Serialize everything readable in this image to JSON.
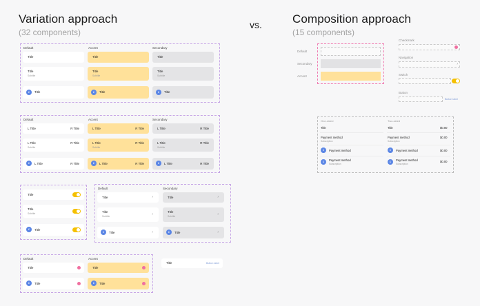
{
  "left": {
    "title": "Variation approach",
    "subtitle": "(32 components)"
  },
  "vs": "vs.",
  "right": {
    "title": "Composition approach",
    "subtitle": "(15 components)"
  },
  "col": {
    "default": "Default",
    "accent": "Accent",
    "secondary": "Secondary"
  },
  "item": {
    "title": "Title",
    "subtitle": "Subtitle",
    "ltitle": "L Title",
    "rtitle": "R Title",
    "avatar": "£",
    "button_label": "Button label"
  },
  "comp": {
    "slot_labels": [
      "Default",
      "Secondary",
      "Accent"
    ],
    "options": [
      "Checkmark",
      "Navigation",
      "Switch",
      "Button"
    ]
  },
  "table": {
    "headers": [
      "One-sided",
      "Two-sided"
    ],
    "title": "Title",
    "amount": "$0.00",
    "payment": "Payment method",
    "sub": "Subscription"
  },
  "colors": {
    "accent": "#ffe19a",
    "secondary": "#e4e4e6",
    "avatar": "#5b86e5",
    "toggle": "#f5c000",
    "frame": "#c7a6e6",
    "pink": "#f06fa0"
  }
}
